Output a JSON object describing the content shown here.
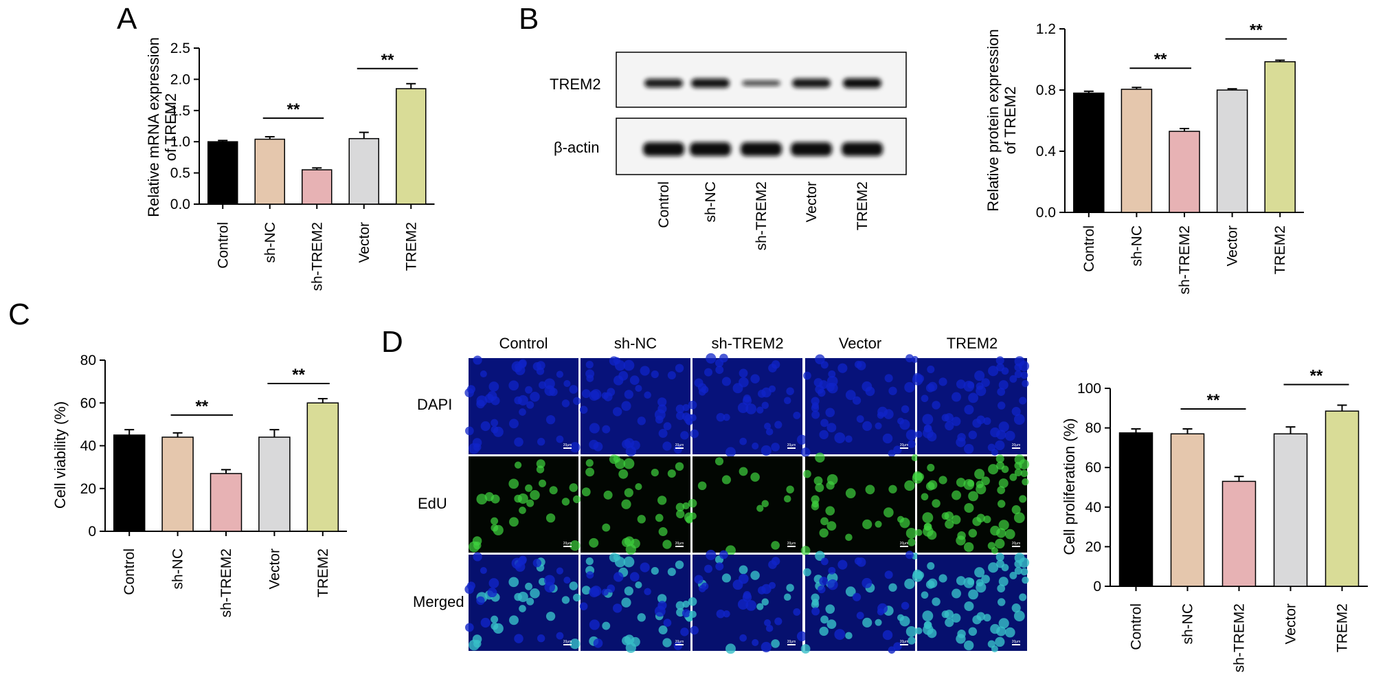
{
  "colors": {
    "bar_fills": [
      "#000000",
      "#e5c7ad",
      "#e7b2b4",
      "#d9d9da",
      "#d9dc97"
    ],
    "dapi_blue": "#1024c8",
    "edu_green": "#3ed33e",
    "merged_cyan": "#37bfc8"
  },
  "panel_letters": {
    "A": "A",
    "B": "B",
    "C": "C",
    "D": "D"
  },
  "blot": {
    "bands": [
      "TREM2",
      "β-actin"
    ],
    "lanes": [
      "Control",
      "sh-NC",
      "sh-TREM2",
      "Vector",
      "TREM2"
    ],
    "intensities": {
      "TREM2": [
        0.9,
        0.95,
        0.55,
        0.92,
        1.0
      ],
      "beta_actin": [
        1.0,
        1.0,
        1.0,
        1.0,
        1.0
      ]
    }
  },
  "microscopy": {
    "columns": [
      "Control",
      "sh-NC",
      "sh-TREM2",
      "Vector",
      "TREM2"
    ],
    "rows": [
      "DAPI",
      "EdU",
      "Merged"
    ],
    "scalebar": "20μm",
    "edu_density": [
      0.55,
      0.6,
      0.3,
      0.55,
      1.0
    ]
  },
  "chart_data": [
    {
      "id": "A",
      "type": "bar",
      "categories": [
        "Control",
        "sh-NC",
        "sh-TREM2",
        "Vector",
        "TREM2"
      ],
      "values": [
        1.0,
        1.04,
        0.55,
        1.05,
        1.85
      ],
      "errors": [
        0.02,
        0.04,
        0.03,
        0.1,
        0.08
      ],
      "ylabel": [
        "Relative mRNA expression",
        "of TREM2"
      ],
      "ylim": [
        0,
        2.5
      ],
      "yticks": [
        0.0,
        0.5,
        1.0,
        1.5,
        2.0,
        2.5
      ],
      "tick_labels": [
        "0.0",
        "0.5",
        "1.0",
        "1.5",
        "2.0",
        "2.5"
      ],
      "significance": [
        {
          "from": "sh-NC",
          "to": "sh-TREM2",
          "label": "**"
        },
        {
          "from": "Vector",
          "to": "TREM2",
          "label": "**"
        }
      ]
    },
    {
      "id": "B",
      "type": "bar",
      "categories": [
        "Control",
        "sh-NC",
        "sh-TREM2",
        "Vector",
        "TREM2"
      ],
      "values": [
        0.78,
        0.805,
        0.53,
        0.8,
        0.985
      ],
      "errors": [
        0.012,
        0.012,
        0.018,
        0.008,
        0.01
      ],
      "ylabel": [
        "Relative protein expression",
        "of TREM2"
      ],
      "ylim": [
        0,
        1.2
      ],
      "yticks": [
        0.0,
        0.4,
        0.8,
        1.2
      ],
      "tick_labels": [
        "0.0",
        "0.4",
        "0.8",
        "1.2"
      ],
      "significance": [
        {
          "from": "sh-NC",
          "to": "sh-TREM2",
          "label": "**"
        },
        {
          "from": "Vector",
          "to": "TREM2",
          "label": "**"
        }
      ]
    },
    {
      "id": "C",
      "type": "bar",
      "categories": [
        "Control",
        "sh-NC",
        "sh-TREM2",
        "Vector",
        "TREM2"
      ],
      "values": [
        45,
        44,
        27,
        44,
        60
      ],
      "errors": [
        2.5,
        2.0,
        1.8,
        3.5,
        2.0
      ],
      "ylabel": [
        "Cell viability (%)"
      ],
      "ylim": [
        0,
        80
      ],
      "yticks": [
        0,
        20,
        40,
        60,
        80
      ],
      "tick_labels": [
        "0",
        "20",
        "40",
        "60",
        "80"
      ],
      "significance": [
        {
          "from": "sh-NC",
          "to": "sh-TREM2",
          "label": "**"
        },
        {
          "from": "Vector",
          "to": "TREM2",
          "label": "**"
        }
      ]
    },
    {
      "id": "D",
      "type": "bar",
      "categories": [
        "Control",
        "sh-NC",
        "sh-TREM2",
        "Vector",
        "TREM2"
      ],
      "values": [
        77.5,
        77,
        53,
        77,
        88.5
      ],
      "errors": [
        2.0,
        2.5,
        2.5,
        3.5,
        3.0
      ],
      "ylabel": [
        "Cell proliferation (%)"
      ],
      "ylim": [
        0,
        100
      ],
      "yticks": [
        0,
        20,
        40,
        60,
        80,
        100
      ],
      "tick_labels": [
        "0",
        "20",
        "40",
        "60",
        "80",
        "100"
      ],
      "significance": [
        {
          "from": "sh-NC",
          "to": "sh-TREM2",
          "label": "**"
        },
        {
          "from": "Vector",
          "to": "TREM2",
          "label": "**"
        }
      ]
    }
  ]
}
